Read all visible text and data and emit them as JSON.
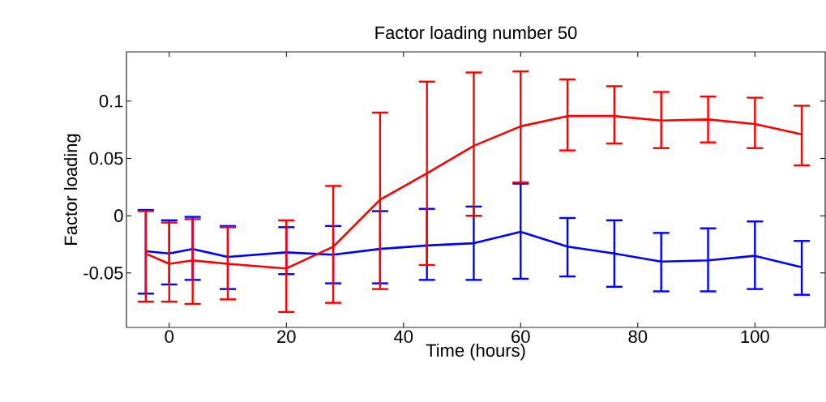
{
  "chart_data": {
    "type": "line",
    "title": "Factor loading number 50",
    "xlabel": "Time (hours)",
    "ylabel": "Factor loading",
    "x": [
      -4,
      0,
      4,
      10,
      20,
      28,
      36,
      44,
      52,
      60,
      68,
      76,
      84,
      92,
      100,
      108
    ],
    "xlim": [
      -7.3,
      112
    ],
    "ylim": [
      -0.0975,
      0.143
    ],
    "xticks": [
      0,
      20,
      40,
      60,
      80,
      100
    ],
    "yticks": [
      -0.05,
      0,
      0.05,
      0.1
    ],
    "grid": false,
    "marker": "none",
    "line_style": "solid",
    "series": [
      {
        "color": "#0000ff",
        "values": [
          -0.031,
          -0.033,
          -0.029,
          -0.036,
          -0.032,
          -0.034,
          -0.029,
          -0.026,
          -0.024,
          -0.014,
          -0.027,
          -0.033,
          -0.04,
          -0.039,
          -0.035,
          -0.045
        ],
        "errors": [
          [
            -0.068,
            0.005
          ],
          [
            -0.06,
            -0.004
          ],
          [
            -0.056,
            -0.001
          ],
          [
            -0.064,
            -0.009
          ],
          [
            -0.051,
            -0.01
          ],
          [
            -0.059,
            -0.009
          ],
          [
            -0.059,
            0.004
          ],
          [
            -0.056,
            0.006
          ],
          [
            -0.056,
            0.008
          ],
          [
            -0.055,
            0.028
          ],
          [
            -0.053,
            -0.002
          ],
          [
            -0.062,
            -0.004
          ],
          [
            -0.066,
            -0.015
          ],
          [
            -0.066,
            -0.011
          ],
          [
            -0.064,
            -0.005
          ],
          [
            -0.069,
            -0.022
          ]
        ]
      },
      {
        "color": "#ff0000",
        "values": [
          -0.033,
          -0.042,
          -0.039,
          -0.042,
          -0.046,
          -0.027,
          0.014,
          0.037,
          0.061,
          0.078,
          0.087,
          0.087,
          0.083,
          0.084,
          0.08,
          0.071
        ],
        "errors": [
          [
            -0.075,
            0.004
          ],
          [
            -0.075,
            -0.006
          ],
          [
            -0.077,
            -0.003
          ],
          [
            -0.073,
            -0.01
          ],
          [
            -0.084,
            -0.004
          ],
          [
            -0.076,
            0.026
          ],
          [
            -0.064,
            0.09
          ],
          [
            -0.043,
            0.117
          ],
          [
            0.0,
            0.125
          ],
          [
            0.029,
            0.126
          ],
          [
            0.057,
            0.119
          ],
          [
            0.063,
            0.113
          ],
          [
            0.059,
            0.108
          ],
          [
            0.064,
            0.104
          ],
          [
            0.059,
            0.103
          ],
          [
            0.044,
            0.096
          ]
        ]
      }
    ]
  }
}
